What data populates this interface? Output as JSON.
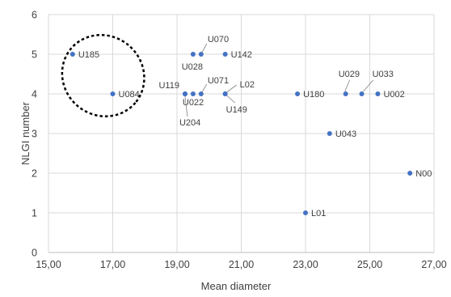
{
  "chart_data": {
    "type": "scatter",
    "title": "",
    "xlabel": "Mean diameter",
    "ylabel": "NLGI number",
    "xlim": [
      15,
      27
    ],
    "ylim": [
      0,
      6
    ],
    "x_ticks": [
      15,
      17,
      19,
      21,
      23,
      25,
      27
    ],
    "x_tick_labels": [
      "15,00",
      "17,00",
      "19,00",
      "21,00",
      "23,00",
      "25,00",
      "27,00"
    ],
    "y_ticks": [
      0,
      1,
      2,
      3,
      4,
      5,
      6
    ],
    "y_tick_labels": [
      "0",
      "1",
      "2",
      "3",
      "4",
      "5",
      "6"
    ],
    "grid": true,
    "marker_color": "#4472c4",
    "points": [
      {
        "label": "U185",
        "x": 15.75,
        "y": 5
      },
      {
        "label": "U084",
        "x": 17.0,
        "y": 4
      },
      {
        "label": "U070",
        "x": 19.75,
        "y": 5
      },
      {
        "label": "U028",
        "x": 19.5,
        "y": 5
      },
      {
        "label": "U142",
        "x": 20.5,
        "y": 5
      },
      {
        "label": "U119",
        "x": 19.25,
        "y": 4
      },
      {
        "label": "U071",
        "x": 19.75,
        "y": 4
      },
      {
        "label": "U022",
        "x": 19.5,
        "y": 4
      },
      {
        "label": "U204",
        "x": 19.25,
        "y": 4
      },
      {
        "label": "L02",
        "x": 20.5,
        "y": 4
      },
      {
        "label": "U149",
        "x": 20.5,
        "y": 4
      },
      {
        "label": "U180",
        "x": 22.75,
        "y": 4
      },
      {
        "label": "U029",
        "x": 24.25,
        "y": 4
      },
      {
        "label": "U033",
        "x": 24.75,
        "y": 4
      },
      {
        "label": "U002",
        "x": 25.25,
        "y": 4
      },
      {
        "label": "U043",
        "x": 23.75,
        "y": 3
      },
      {
        "label": "N00",
        "x": 26.25,
        "y": 2
      },
      {
        "label": "L01",
        "x": 23.0,
        "y": 1
      }
    ],
    "annotations": [
      {
        "type": "dashed-ellipse",
        "encloses": [
          "U185",
          "U084"
        ]
      }
    ]
  }
}
